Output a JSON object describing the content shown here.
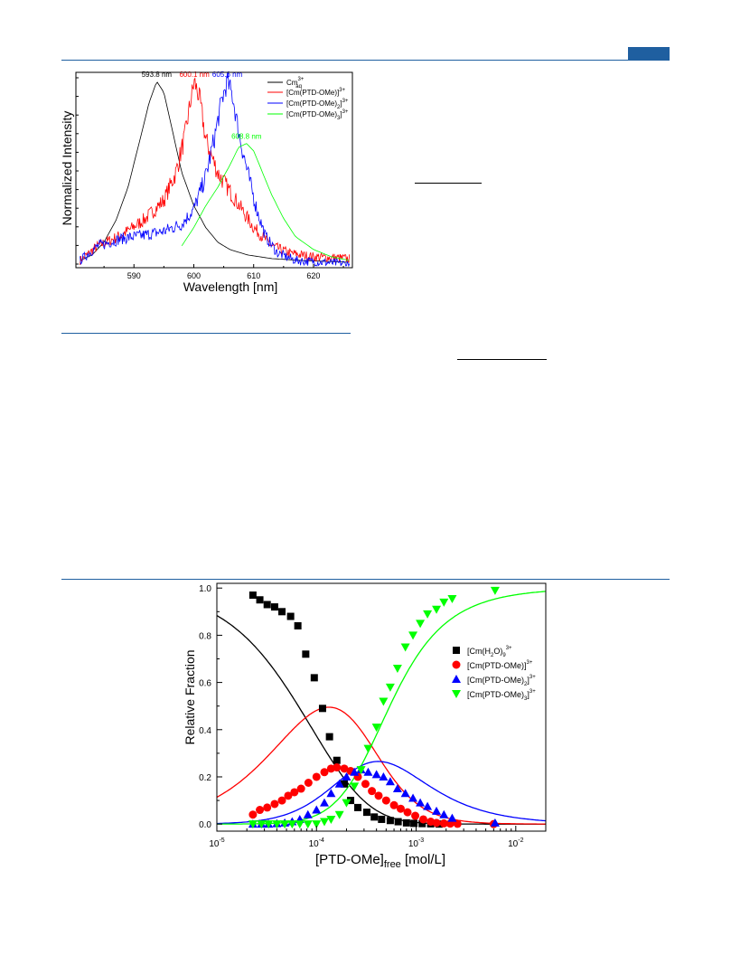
{
  "colors": {
    "rule": "#1f5fa0",
    "black": "#000000",
    "red": "#ff0000",
    "blue": "#0000ff",
    "green": "#00ff00"
  },
  "chart_data": [
    {
      "type": "line",
      "xlabel": "Wavelength [nm]",
      "ylabel": "Normalized Intensity",
      "xlim": [
        580.3,
        626.5
      ],
      "ylim": [
        0,
        1.02
      ],
      "xticks": [
        590,
        600,
        610,
        620
      ],
      "grid": false,
      "legend_position": "top-right",
      "series": [
        {
          "name": "Cm³⁺aq",
          "color": "#000000",
          "peak_x": 593.8,
          "peak_label": "593.8 nm",
          "noise": 0.0,
          "points": [
            [
              581,
              0.02
            ],
            [
              583,
              0.05
            ],
            [
              585,
              0.12
            ],
            [
              587,
              0.24
            ],
            [
              589,
              0.42
            ],
            [
              591,
              0.68
            ],
            [
              592.5,
              0.88
            ],
            [
              593.8,
              1.0
            ],
            [
              595,
              0.94
            ],
            [
              596.5,
              0.72
            ],
            [
              598,
              0.5
            ],
            [
              600,
              0.32
            ],
            [
              602,
              0.2
            ],
            [
              604,
              0.12
            ],
            [
              606,
              0.08
            ],
            [
              609,
              0.05
            ],
            [
              613,
              0.03
            ],
            [
              618,
              0.02
            ],
            [
              626,
              0.01
            ]
          ]
        },
        {
          "name": "[Cm(PTD-OMe)]³⁺",
          "color": "#ff0000",
          "peak_x": 600.1,
          "peak_label": "600.1 nm",
          "noise": 0.06,
          "points": [
            [
              581,
              0.02
            ],
            [
              584,
              0.1
            ],
            [
              588,
              0.16
            ],
            [
              592,
              0.25
            ],
            [
              595,
              0.35
            ],
            [
              597,
              0.5
            ],
            [
              598.5,
              0.7
            ],
            [
              599.5,
              0.9
            ],
            [
              600.1,
              1.0
            ],
            [
              601,
              0.9
            ],
            [
              602,
              0.68
            ],
            [
              604,
              0.5
            ],
            [
              606,
              0.4
            ],
            [
              608,
              0.3
            ],
            [
              610,
              0.2
            ],
            [
              613,
              0.1
            ],
            [
              616,
              0.06
            ],
            [
              620,
              0.04
            ],
            [
              626,
              0.03
            ]
          ]
        },
        {
          "name": "[Cm(PTD-OMe)₂]³⁺",
          "color": "#0000ff",
          "peak_x": 605.6,
          "peak_label": "605.6 nm",
          "noise": 0.06,
          "points": [
            [
              581,
              0.02
            ],
            [
              584,
              0.1
            ],
            [
              588,
              0.14
            ],
            [
              592,
              0.16
            ],
            [
              595,
              0.18
            ],
            [
              598,
              0.22
            ],
            [
              600,
              0.3
            ],
            [
              602,
              0.48
            ],
            [
              603.5,
              0.7
            ],
            [
              604.7,
              0.9
            ],
            [
              605.6,
              1.0
            ],
            [
              606.5,
              0.92
            ],
            [
              607.5,
              0.72
            ],
            [
              609,
              0.5
            ],
            [
              610.5,
              0.3
            ],
            [
              612,
              0.15
            ],
            [
              614,
              0.06
            ],
            [
              617,
              0.02
            ],
            [
              626,
              0.0
            ]
          ]
        },
        {
          "name": "[Cm(PTD-OMe)₃]³⁺",
          "color": "#00ff00",
          "peak_x": 608.8,
          "peak_label": "608.8 nm",
          "noise": 0.0,
          "points": [
            [
              598,
              0.1
            ],
            [
              600,
              0.2
            ],
            [
              602,
              0.32
            ],
            [
              604,
              0.42
            ],
            [
              606,
              0.54
            ],
            [
              607.5,
              0.64
            ],
            [
              608.8,
              0.66
            ],
            [
              610,
              0.62
            ],
            [
              611.5,
              0.5
            ],
            [
              613,
              0.38
            ],
            [
              615,
              0.25
            ],
            [
              617,
              0.15
            ],
            [
              620,
              0.08
            ],
            [
              623,
              0.04
            ],
            [
              626,
              0.02
            ]
          ]
        }
      ]
    },
    {
      "type": "scatter",
      "xlabel": "[PTD-OMe]free [mol/L]",
      "xlabel_main": "[PTD-OMe]",
      "xlabel_sub": "free",
      "xlabel_unit": " [mol/L]",
      "ylabel": "Relative Fraction",
      "xscale": "log",
      "xlim": [
        1e-05,
        0.02
      ],
      "ylim": [
        -0.03,
        1.02
      ],
      "xtick_labels": [
        {
          "base": "10",
          "exp": "-5",
          "value": 1e-05
        },
        {
          "base": "10",
          "exp": "-4",
          "value": 0.0001
        },
        {
          "base": "10",
          "exp": "-3",
          "value": 0.001
        },
        {
          "base": "10",
          "exp": "-2",
          "value": 0.01
        }
      ],
      "yticks": [
        "0.0",
        "0.2",
        "0.4",
        "0.6",
        "0.8",
        "1.0"
      ],
      "grid": false,
      "legend_position": "right",
      "series": [
        {
          "name": "[Cm(H₂O)₉]³⁺",
          "label_main": "[Cm(H",
          "label_sub1": "2",
          "label_mid": "O)",
          "label_sub2": "9",
          "label_sup": "3+",
          "color": "#000000",
          "marker": "square",
          "fit": [
            0,
            7.76e-05
          ],
          "fit_n": 0,
          "x": [
            2.3e-05,
            2.7e-05,
            3.2e-05,
            3.8e-05,
            4.5e-05,
            5.5e-05,
            6.5e-05,
            7.8e-05,
            9.5e-05,
            0.000115,
            0.000135,
            0.00016,
            0.00019,
            0.00022,
            0.00026,
            0.00032,
            0.00038,
            0.00045,
            0.00055,
            0.00066,
            0.0008,
            0.00095,
            0.00115,
            0.0014,
            0.0017
          ],
          "y": [
            0.97,
            0.95,
            0.93,
            0.92,
            0.9,
            0.88,
            0.84,
            0.72,
            0.62,
            0.49,
            0.37,
            0.27,
            0.17,
            0.1,
            0.07,
            0.05,
            0.03,
            0.02,
            0.015,
            0.01,
            0.005,
            0.003,
            0.002,
            0.001,
            0.0
          ]
        },
        {
          "name": "[Cm(PTD-OMe)]³⁺",
          "label_main": "[Cm(PTD-OMe)]",
          "label_sup": "3+",
          "color": "#ff0000",
          "marker": "circle",
          "fit": [
            1,
            7.76e-05
          ],
          "fit_n": 1,
          "x": [
            2.3e-05,
            2.7e-05,
            3.2e-05,
            3.8e-05,
            4.5e-05,
            5.2e-05,
            6e-05,
            7e-05,
            8.3e-05,
            0.0001,
            0.00012,
            0.00014,
            0.00016,
            0.00019,
            0.00022,
            0.00026,
            0.00031,
            0.00036,
            0.00042,
            0.0005,
            0.0006,
            0.0007,
            0.00082,
            0.00098,
            0.00118,
            0.0014,
            0.0016,
            0.0019,
            0.0022,
            0.0026,
            0.006
          ],
          "y": [
            0.04,
            0.06,
            0.07,
            0.085,
            0.1,
            0.12,
            0.135,
            0.15,
            0.175,
            0.2,
            0.22,
            0.235,
            0.24,
            0.235,
            0.225,
            0.2,
            0.17,
            0.14,
            0.12,
            0.1,
            0.08,
            0.065,
            0.05,
            0.035,
            0.02,
            0.01,
            0.005,
            0.003,
            0.002,
            0.001,
            0.0
          ]
        },
        {
          "name": "[Cm(PTD-OMe)₂]³⁺",
          "label_main": "[Cm(PTD-OMe)",
          "label_sub1": "2",
          "label_mid": "]",
          "label_sup": "3+",
          "color": "#0000ff",
          "marker": "triangle-up",
          "fit": [
            2,
            7.76e-05
          ],
          "fit_n": 2,
          "x": [
            2.3e-05,
            2.8e-05,
            3.3e-05,
            4e-05,
            4.8e-05,
            5.7e-05,
            6.8e-05,
            8.2e-05,
            0.0001,
            0.00012,
            0.00014,
            0.00017,
            0.0002,
            0.00024,
            0.00028,
            0.00033,
            0.0004,
            0.00047,
            0.00055,
            0.00065,
            0.00078,
            0.00093,
            0.0011,
            0.0013,
            0.0016,
            0.0019,
            0.0023,
            0.0062
          ],
          "y": [
            0.0,
            0.0,
            0.0,
            0.002,
            0.005,
            0.01,
            0.02,
            0.04,
            0.06,
            0.09,
            0.13,
            0.17,
            0.2,
            0.22,
            0.23,
            0.22,
            0.21,
            0.2,
            0.18,
            0.15,
            0.13,
            0.11,
            0.09,
            0.075,
            0.055,
            0.04,
            0.025,
            0.005
          ]
        },
        {
          "name": "[Cm(PTD-OMe)₃]³⁺",
          "label_main": "[Cm(PTD-OMe)",
          "label_sub1": "3",
          "label_mid": "]",
          "label_sup": "3+",
          "color": "#00ff00",
          "marker": "triangle-down",
          "fit": [
            3,
            7.76e-05
          ],
          "fit_n": 3,
          "x": [
            2.3e-05,
            2.8e-05,
            3.3e-05,
            4e-05,
            4.8e-05,
            5.7e-05,
            6.8e-05,
            8.2e-05,
            0.0001,
            0.00012,
            0.00014,
            0.00017,
            0.0002,
            0.00024,
            0.00028,
            0.00033,
            0.0004,
            0.00047,
            0.00055,
            0.00065,
            0.00078,
            0.00093,
            0.0011,
            0.0013,
            0.0016,
            0.0019,
            0.0023,
            0.0062
          ],
          "y": [
            0.0,
            0.0,
            0.0,
            0.0,
            0.0,
            0.0,
            0.0,
            0.0,
            0.0,
            0.01,
            0.02,
            0.04,
            0.09,
            0.16,
            0.23,
            0.32,
            0.41,
            0.52,
            0.58,
            0.66,
            0.75,
            0.8,
            0.85,
            0.89,
            0.91,
            0.94,
            0.955,
            0.99
          ]
        }
      ]
    }
  ]
}
